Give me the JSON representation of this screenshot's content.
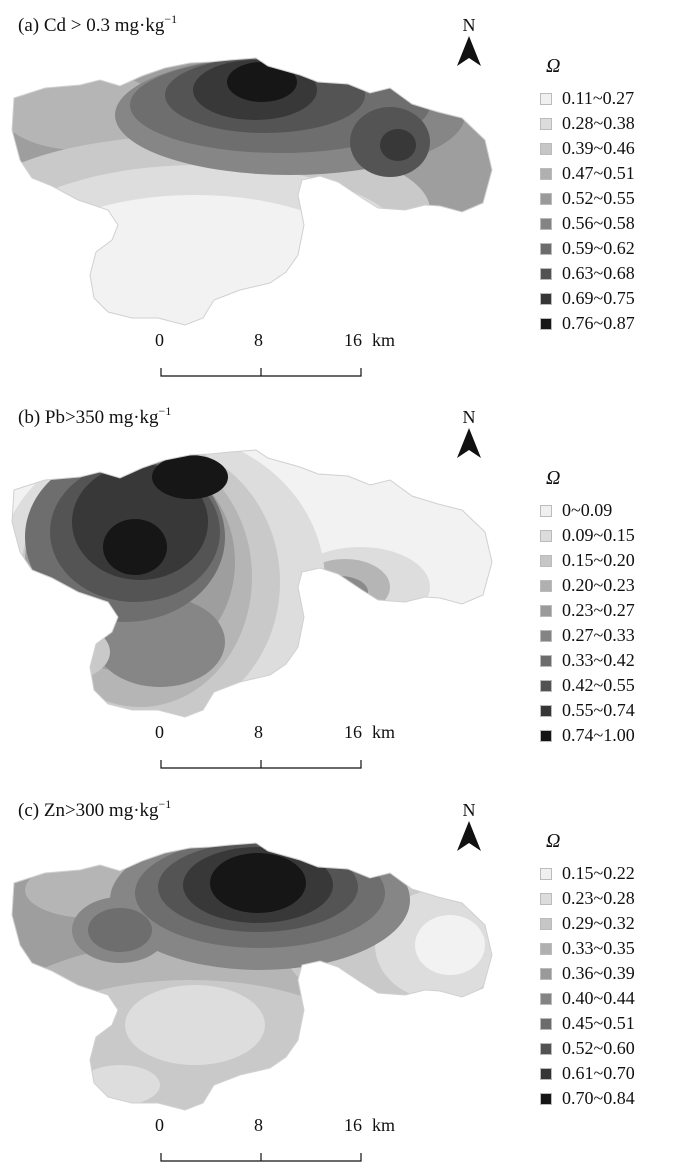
{
  "panels": [
    {
      "id": "a",
      "title_prefix": "(a) Cd > 0.3 mg·kg",
      "title_exp": "−1",
      "north": "N",
      "legend_title": "Ω",
      "legend": [
        {
          "label": "0.11~0.27",
          "color": "#f0f0f0"
        },
        {
          "label": "0.28~0.38",
          "color": "#dcdcdc"
        },
        {
          "label": "0.39~0.46",
          "color": "#c6c6c6"
        },
        {
          "label": "0.47~0.51",
          "color": "#b0b0b0"
        },
        {
          "label": "0.52~0.55",
          "color": "#9a9a9a"
        },
        {
          "label": "0.56~0.58",
          "color": "#848484"
        },
        {
          "label": "0.59~0.62",
          "color": "#6c6c6c"
        },
        {
          "label": "0.63~0.68",
          "color": "#525252"
        },
        {
          "label": "0.69~0.75",
          "color": "#363636"
        },
        {
          "label": "0.76~0.87",
          "color": "#151515"
        }
      ],
      "scale": {
        "ticks": [
          "0",
          "8",
          "16"
        ],
        "unit": "km"
      }
    },
    {
      "id": "b",
      "title_prefix": "(b) Pb>350 mg·kg",
      "title_exp": "−1",
      "north": "N",
      "legend_title": "Ω",
      "legend": [
        {
          "label": "0~0.09",
          "color": "#f0f0f0"
        },
        {
          "label": "0.09~0.15",
          "color": "#dcdcdc"
        },
        {
          "label": "0.15~0.20",
          "color": "#c6c6c6"
        },
        {
          "label": "0.20~0.23",
          "color": "#b0b0b0"
        },
        {
          "label": "0.23~0.27",
          "color": "#9a9a9a"
        },
        {
          "label": "0.27~0.33",
          "color": "#848484"
        },
        {
          "label": "0.33~0.42",
          "color": "#6c6c6c"
        },
        {
          "label": "0.42~0.55",
          "color": "#525252"
        },
        {
          "label": "0.55~0.74",
          "color": "#363636"
        },
        {
          "label": "0.74~1.00",
          "color": "#151515"
        }
      ],
      "scale": {
        "ticks": [
          "0",
          "8",
          "16"
        ],
        "unit": "km"
      }
    },
    {
      "id": "c",
      "title_prefix": "(c) Zn>300 mg·kg",
      "title_exp": "−1",
      "north": "N",
      "legend_title": "Ω",
      "legend": [
        {
          "label": "0.15~0.22",
          "color": "#f0f0f0"
        },
        {
          "label": "0.23~0.28",
          "color": "#dcdcdc"
        },
        {
          "label": "0.29~0.32",
          "color": "#c6c6c6"
        },
        {
          "label": "0.33~0.35",
          "color": "#b0b0b0"
        },
        {
          "label": "0.36~0.39",
          "color": "#9a9a9a"
        },
        {
          "label": "0.40~0.44",
          "color": "#848484"
        },
        {
          "label": "0.45~0.51",
          "color": "#6c6c6c"
        },
        {
          "label": "0.52~0.60",
          "color": "#525252"
        },
        {
          "label": "0.61~0.70",
          "color": "#363636"
        },
        {
          "label": "0.70~0.84",
          "color": "#151515"
        }
      ],
      "scale": {
        "ticks": [
          "0",
          "8",
          "16"
        ],
        "unit": "km"
      }
    }
  ]
}
